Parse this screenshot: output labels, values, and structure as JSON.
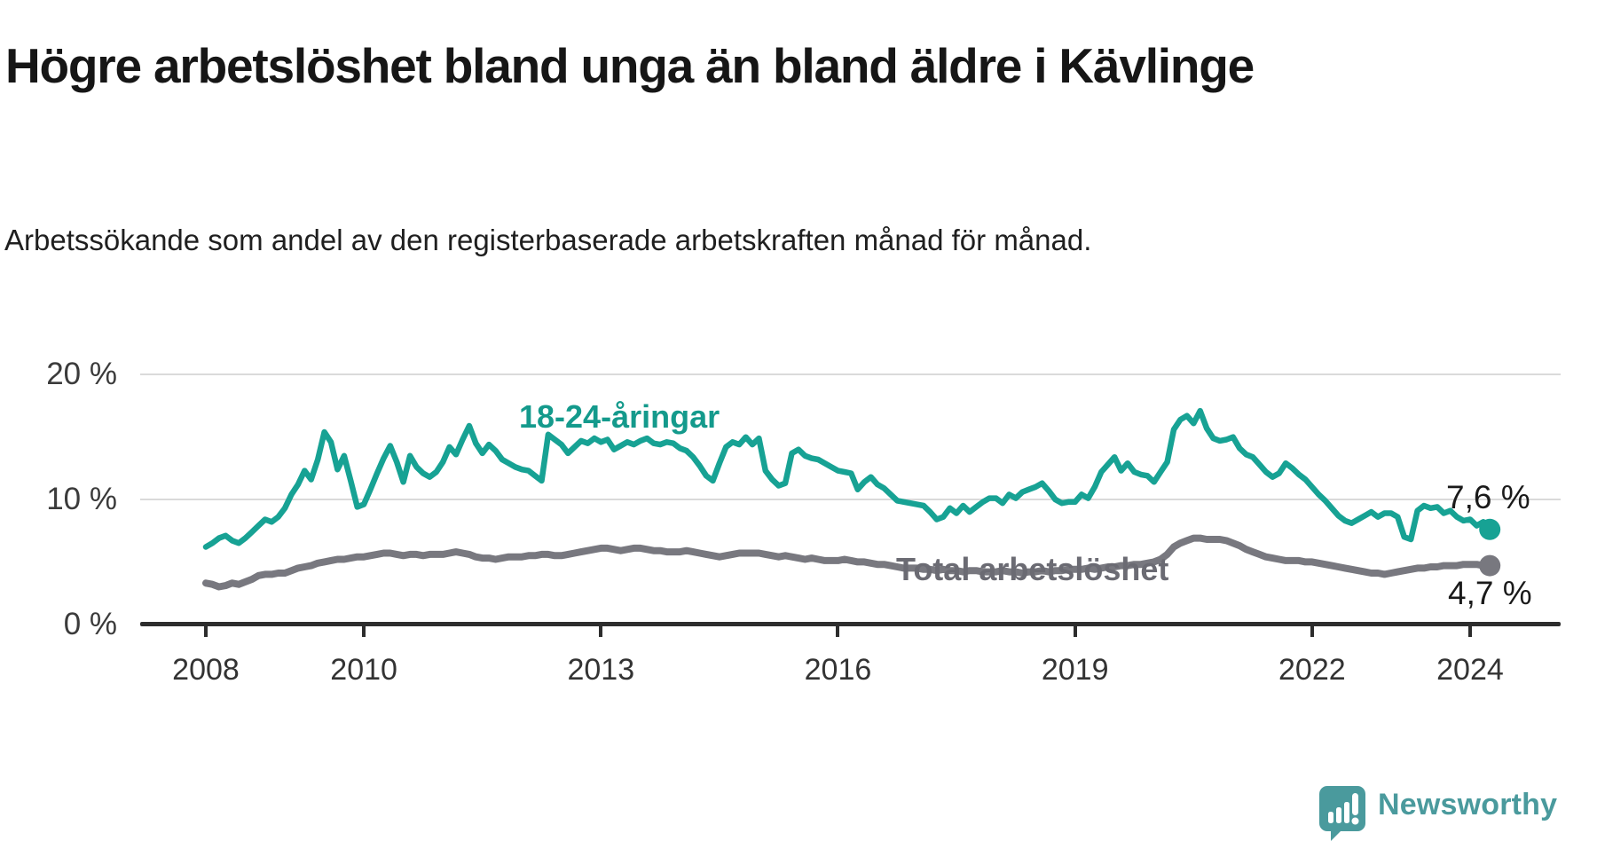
{
  "header": {
    "title": "Högre arbetslöshet bland unga än bland äldre i Kävlinge",
    "subtitle": "Arbetssökande som andel av den registerbaserade arbetskraften månad för månad."
  },
  "chart_data": {
    "type": "line",
    "title": "Högre arbetslöshet bland unga än bland äldre i Kävlinge",
    "xlabel": "",
    "ylabel": "",
    "unit": "%",
    "frequency": "monthly",
    "x_start": "2008-01",
    "x_end": "2024-04",
    "grid": true,
    "legend_position": "inline",
    "ylim": [
      0,
      22
    ],
    "y_ticks": [
      {
        "value": 0,
        "label": "0 %"
      },
      {
        "value": 10,
        "label": "10 %"
      },
      {
        "value": 20,
        "label": "20 %"
      }
    ],
    "x_ticks": [
      {
        "value": 2008,
        "label": "2008"
      },
      {
        "value": 2010,
        "label": "2010"
      },
      {
        "value": 2013,
        "label": "2013"
      },
      {
        "value": 2016,
        "label": "2016"
      },
      {
        "value": 2019,
        "label": "2019"
      },
      {
        "value": 2022,
        "label": "2022"
      },
      {
        "value": 2024,
        "label": "2024"
      }
    ],
    "series": [
      {
        "name": "18-24-åringar",
        "color": "#17a294",
        "end_label": "7,6 %",
        "end_value": 7.6,
        "values": [
          6.2,
          6.5,
          6.9,
          7.1,
          6.7,
          6.5,
          6.9,
          7.4,
          7.9,
          8.4,
          8.2,
          8.6,
          9.3,
          10.4,
          11.2,
          12.3,
          11.6,
          13.2,
          15.4,
          14.6,
          12.4,
          13.5,
          11.5,
          9.4,
          9.6,
          10.8,
          12.1,
          13.3,
          14.3,
          13.0,
          11.4,
          13.5,
          12.6,
          12.1,
          11.8,
          12.2,
          13.0,
          14.2,
          13.6,
          14.8,
          15.9,
          14.5,
          13.7,
          14.4,
          13.9,
          13.2,
          12.9,
          12.6,
          12.4,
          12.3,
          11.9,
          11.5,
          15.2,
          14.8,
          14.4,
          13.7,
          14.2,
          14.7,
          14.5,
          14.9,
          14.6,
          14.8,
          14.0,
          14.3,
          14.6,
          14.4,
          14.7,
          14.9,
          14.5,
          14.4,
          14.6,
          14.5,
          14.1,
          13.9,
          13.4,
          12.7,
          11.9,
          11.5,
          12.9,
          14.2,
          14.6,
          14.4,
          15.0,
          14.4,
          14.9,
          12.3,
          11.6,
          11.1,
          11.3,
          13.7,
          14.0,
          13.5,
          13.3,
          13.2,
          12.9,
          12.6,
          12.3,
          12.2,
          12.1,
          10.8,
          11.4,
          11.8,
          11.2,
          10.9,
          10.4,
          9.9,
          9.8,
          9.7,
          9.6,
          9.5,
          9.0,
          8.4,
          8.6,
          9.3,
          8.9,
          9.5,
          9.0,
          9.4,
          9.8,
          10.1,
          10.1,
          9.7,
          10.4,
          10.1,
          10.6,
          10.8,
          11.0,
          11.3,
          10.7,
          10.0,
          9.7,
          9.8,
          9.8,
          10.4,
          10.1,
          11.0,
          12.2,
          12.8,
          13.4,
          12.3,
          12.9,
          12.2,
          12.0,
          11.9,
          11.4,
          12.2,
          13.0,
          15.6,
          16.4,
          16.7,
          16.1,
          17.1,
          15.7,
          14.9,
          14.7,
          14.8,
          15.0,
          14.1,
          13.6,
          13.4,
          12.8,
          12.2,
          11.8,
          12.1,
          12.9,
          12.5,
          12.0,
          11.6,
          11.0,
          10.4,
          9.9,
          9.3,
          8.7,
          8.3,
          8.1,
          8.4,
          8.7,
          9.0,
          8.6,
          8.9,
          8.9,
          8.6,
          7.0,
          6.8,
          9.1,
          9.5,
          9.3,
          9.4,
          8.9,
          9.1,
          8.6,
          8.3,
          8.4,
          7.9,
          8.2,
          7.6
        ]
      },
      {
        "name": "Total arbetslöshet",
        "color": "#78787f",
        "end_label": "4,7 %",
        "end_value": 4.7,
        "values": [
          3.3,
          3.2,
          3.0,
          3.1,
          3.3,
          3.2,
          3.4,
          3.6,
          3.9,
          4.0,
          4.0,
          4.1,
          4.1,
          4.3,
          4.5,
          4.6,
          4.7,
          4.9,
          5.0,
          5.1,
          5.2,
          5.2,
          5.3,
          5.4,
          5.4,
          5.5,
          5.6,
          5.7,
          5.7,
          5.6,
          5.5,
          5.6,
          5.6,
          5.5,
          5.6,
          5.6,
          5.6,
          5.7,
          5.8,
          5.7,
          5.6,
          5.4,
          5.3,
          5.3,
          5.2,
          5.3,
          5.4,
          5.4,
          5.4,
          5.5,
          5.5,
          5.6,
          5.6,
          5.5,
          5.5,
          5.6,
          5.7,
          5.8,
          5.9,
          6.0,
          6.1,
          6.1,
          6.0,
          5.9,
          6.0,
          6.1,
          6.1,
          6.0,
          5.9,
          5.9,
          5.8,
          5.8,
          5.8,
          5.9,
          5.8,
          5.7,
          5.6,
          5.5,
          5.4,
          5.5,
          5.6,
          5.7,
          5.7,
          5.7,
          5.7,
          5.6,
          5.5,
          5.4,
          5.5,
          5.4,
          5.3,
          5.2,
          5.3,
          5.2,
          5.1,
          5.1,
          5.1,
          5.2,
          5.1,
          5.0,
          5.0,
          4.9,
          4.8,
          4.8,
          4.7,
          4.6,
          4.5,
          4.5,
          4.5,
          4.4,
          4.4,
          4.3,
          4.4,
          4.3,
          4.3,
          4.2,
          4.3,
          4.3,
          4.2,
          4.2,
          4.2,
          4.3,
          4.2,
          4.2,
          4.1,
          4.2,
          4.2,
          4.3,
          4.2,
          4.3,
          4.3,
          4.4,
          4.4,
          4.4,
          4.5,
          4.4,
          4.5,
          4.6,
          4.6,
          4.7,
          4.7,
          4.8,
          4.8,
          4.9,
          5.0,
          5.2,
          5.6,
          6.2,
          6.5,
          6.7,
          6.9,
          6.9,
          6.8,
          6.8,
          6.8,
          6.7,
          6.5,
          6.3,
          6.0,
          5.8,
          5.6,
          5.4,
          5.3,
          5.2,
          5.1,
          5.1,
          5.1,
          5.0,
          5.0,
          4.9,
          4.8,
          4.7,
          4.6,
          4.5,
          4.4,
          4.3,
          4.2,
          4.1,
          4.1,
          4.0,
          4.1,
          4.2,
          4.3,
          4.4,
          4.5,
          4.5,
          4.6,
          4.6,
          4.7,
          4.7,
          4.7,
          4.8,
          4.8,
          4.8,
          4.7,
          4.7
        ]
      }
    ]
  },
  "watermark": {
    "brand": "Newsworthy"
  }
}
